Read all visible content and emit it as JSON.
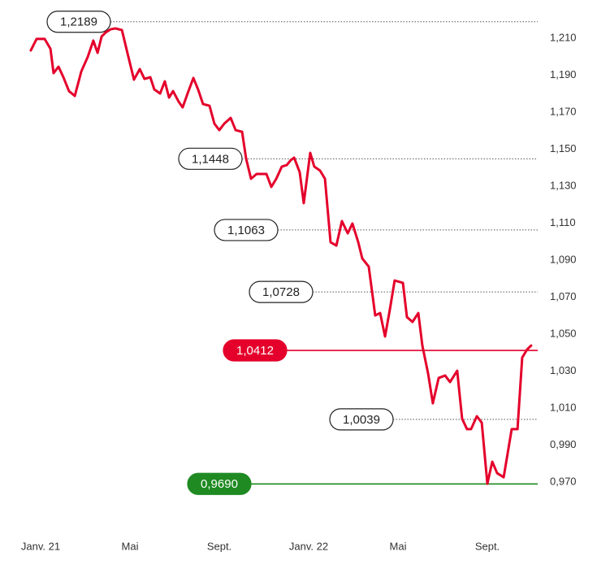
{
  "chart_data": {
    "type": "line",
    "x": [
      -0.44,
      -0.18,
      0.18,
      0.44,
      0.58,
      0.8,
      1.02,
      1.27,
      1.53,
      1.82,
      2.11,
      2.36,
      2.55,
      2.73,
      2.91,
      3.13,
      3.35,
      3.64,
      3.93,
      4.18,
      4.44,
      4.65,
      4.91,
      5.09,
      5.35,
      5.56,
      5.75,
      5.93,
      6.18,
      6.36,
      6.58,
      6.84,
      7.05,
      7.27,
      7.56,
      7.78,
      8.0,
      8.22,
      8.51,
      8.73,
      9.02,
      9.2,
      9.42,
      9.67,
      10.11,
      10.33,
      10.55,
      10.8,
      11.02,
      11.2,
      11.35,
      11.6,
      11.78,
      12.07,
      12.25,
      12.51,
      12.73,
      12.98,
      13.24,
      13.49,
      13.75,
      13.96,
      14.22,
      14.4,
      14.69,
      14.98,
      15.2,
      15.42,
      15.64,
      15.85,
      16.22,
      16.4,
      16.65,
      16.91,
      17.09,
      17.35,
      17.56,
      17.82,
      18.11,
      18.33,
      18.65,
      18.87,
      19.09,
      19.27,
      19.53,
      19.75,
      20.0,
      20.22,
      20.44,
      20.73,
      21.09,
      21.35,
      21.56,
      21.78,
      21.96
    ],
    "series": [
      {
        "color": "#e4002b",
        "values": [
          1.2034,
          1.2096,
          1.2096,
          1.2043,
          1.1911,
          1.1946,
          1.1889,
          1.1814,
          1.1788,
          1.192,
          1.1999,
          1.2087,
          1.2021,
          1.2109,
          1.2131,
          1.2148,
          1.2153,
          1.2144,
          1.1999,
          1.1876,
          1.1933,
          1.188,
          1.1889,
          1.1823,
          1.1801,
          1.1867,
          1.1779,
          1.1814,
          1.1757,
          1.1726,
          1.1801,
          1.1885,
          1.1823,
          1.1744,
          1.1735,
          1.1638,
          1.1603,
          1.1638,
          1.1669,
          1.1603,
          1.1594,
          1.1449,
          1.134,
          1.1366,
          1.1366,
          1.1296,
          1.134,
          1.1406,
          1.1414,
          1.1441,
          1.1454,
          1.1375,
          1.1208,
          1.148,
          1.1406,
          1.1384,
          1.134,
          1.0997,
          1.0979,
          1.1111,
          1.1045,
          1.1098,
          1.0997,
          1.0909,
          1.0865,
          1.0601,
          1.0614,
          1.0487,
          1.0636,
          1.079,
          1.0777,
          1.0592,
          1.0566,
          1.0614,
          1.0438,
          1.0285,
          1.0126,
          1.0263,
          1.0276,
          1.0241,
          1.0302,
          1.0043,
          0.9986,
          0.9986,
          1.0056,
          1.0021,
          0.9691,
          0.981,
          0.9748,
          0.9726,
          0.9986,
          0.9986,
          1.0373,
          1.0417,
          1.0438
        ]
      }
    ],
    "reference_lines": [
      {
        "value": 1.2189,
        "label": "1,2189",
        "color": "#555555",
        "style": "dotted"
      },
      {
        "value": 1.1448,
        "label": "1,1448",
        "color": "#555555",
        "style": "dotted"
      },
      {
        "value": 1.1063,
        "label": "1,1063",
        "color": "#555555",
        "style": "dotted"
      },
      {
        "value": 1.0728,
        "label": "1,0728",
        "color": "#555555",
        "style": "dotted"
      },
      {
        "value": 1.0412,
        "label": "1,0412",
        "color": "#e4002b",
        "style": "solid"
      },
      {
        "value": 1.0039,
        "label": "1,0039",
        "color": "#555555",
        "style": "dotted"
      },
      {
        "value": 0.969,
        "label": "0,9690",
        "color": "#1f8a22",
        "style": "solid"
      }
    ],
    "xlim": [
      -1,
      22.5
    ],
    "xticks": [
      {
        "value": 0,
        "label": "Janv. 21"
      },
      {
        "value": 4,
        "label": "Mai"
      },
      {
        "value": 8,
        "label": "Sept."
      },
      {
        "value": 12,
        "label": "Janv. 22"
      },
      {
        "value": 16,
        "label": "Mai"
      },
      {
        "value": 20,
        "label": "Sept."
      }
    ],
    "ylim": [
      0.95,
      1.23
    ],
    "yticks": [
      {
        "value": 1.21,
        "label": "1,210"
      },
      {
        "value": 1.19,
        "label": "1,190"
      },
      {
        "value": 1.17,
        "label": "1,170"
      },
      {
        "value": 1.15,
        "label": "1,150"
      },
      {
        "value": 1.13,
        "label": "1,130"
      },
      {
        "value": 1.11,
        "label": "1,110"
      },
      {
        "value": 1.09,
        "label": "1,090"
      },
      {
        "value": 1.07,
        "label": "1,070"
      },
      {
        "value": 1.05,
        "label": "1,050"
      },
      {
        "value": 1.03,
        "label": "1,030"
      },
      {
        "value": 1.01,
        "label": "1,010"
      },
      {
        "value": 0.99,
        "label": "0,990"
      },
      {
        "value": 0.97,
        "label": "0,970"
      }
    ]
  }
}
